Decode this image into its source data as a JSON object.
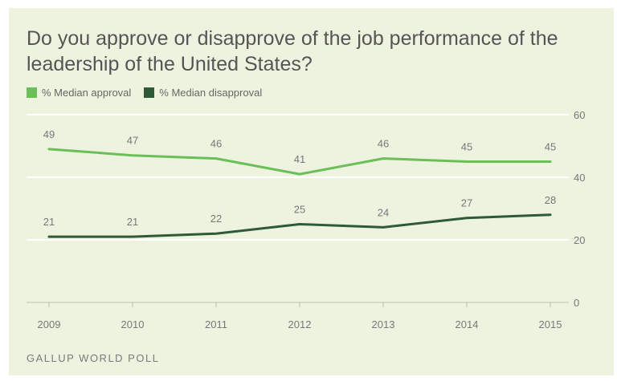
{
  "colors": {
    "background": "#eef3e0",
    "approval": "#6abf57",
    "disapproval": "#2e5a37",
    "grid": "#ffffff",
    "text": "#666666"
  },
  "source": "GALLUP WORLD POLL",
  "chart_data": {
    "type": "line",
    "title": "Do you approve or disapprove of the job performance of the leadership of the United States?",
    "categories": [
      "2009",
      "2010",
      "2011",
      "2012",
      "2013",
      "2014",
      "2015"
    ],
    "series": [
      {
        "name": "% Median approval",
        "values": [
          49,
          47,
          46,
          41,
          46,
          45,
          45
        ]
      },
      {
        "name": "% Median disapproval",
        "values": [
          21,
          21,
          22,
          25,
          24,
          27,
          28
        ]
      }
    ],
    "yticks": [
      0,
      20,
      40,
      60
    ],
    "ylim": [
      0,
      60
    ],
    "xlabel": "",
    "ylabel": "",
    "y_axis_position": "right",
    "grid": true,
    "legend_position": "top-left",
    "data_labels": true
  }
}
